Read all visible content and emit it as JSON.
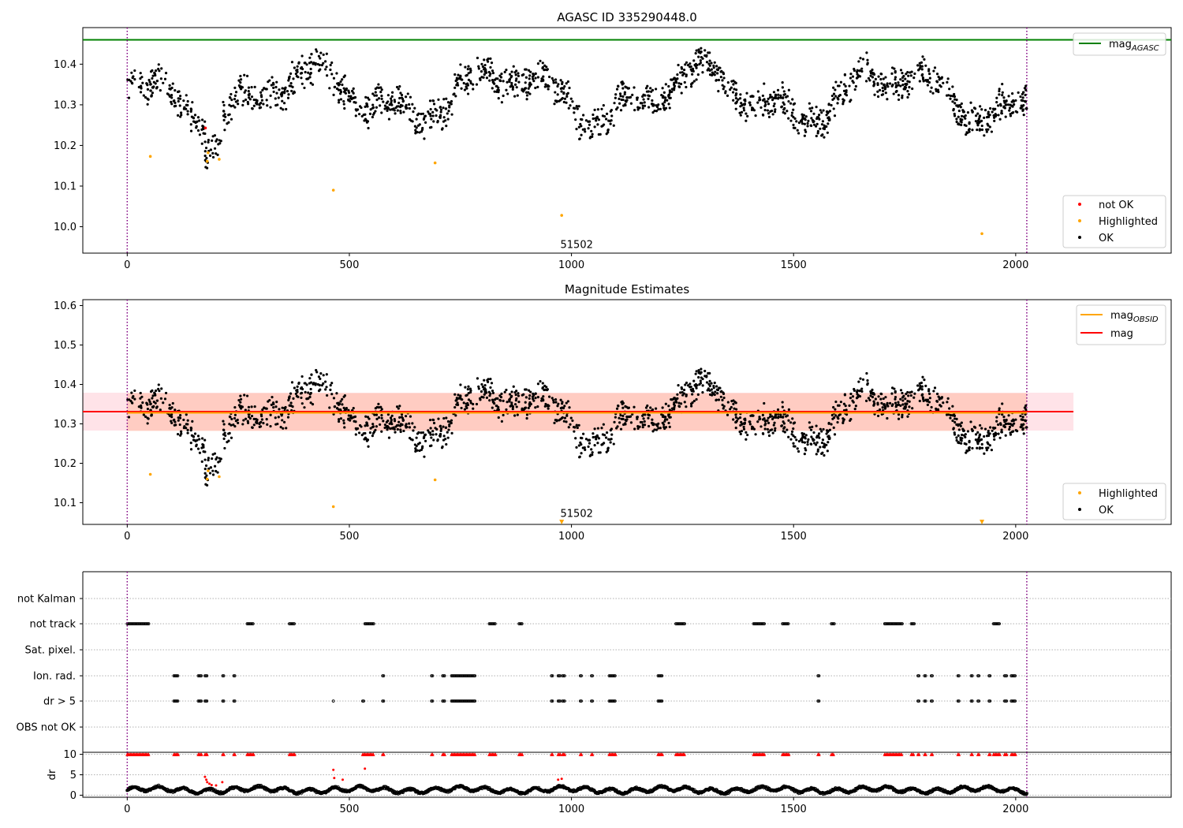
{
  "chart_data": [
    {
      "type": "scatter",
      "title": "AGASC ID 335290448.0",
      "xlabel": "",
      "ylabel": "",
      "xlim": [
        -100,
        2350
      ],
      "ylim": [
        9.935,
        10.49
      ],
      "xticks": [
        0,
        500,
        1000,
        1500,
        2000
      ],
      "yticks": [
        10.0,
        10.1,
        10.2,
        10.3,
        10.4
      ],
      "grid": false,
      "legend_upper": {
        "placement": "top-right",
        "entries": [
          {
            "label": "mag",
            "subscript": "AGASC",
            "color": "#008000"
          }
        ]
      },
      "legend_lower": {
        "placement": "bottom-right",
        "entries": [
          {
            "label": "not OK",
            "color": "#ff0000"
          },
          {
            "label": "Highlighted",
            "color": "#ffa500"
          },
          {
            "label": "OK",
            "color": "#000000"
          }
        ]
      },
      "hlines": [
        {
          "name": "mag_AGASC",
          "y": 10.46,
          "color": "#008000"
        }
      ],
      "vlines": [
        {
          "x": 0,
          "color": "#800080",
          "style": "dotted"
        },
        {
          "x": 2025,
          "color": "#800080",
          "style": "dotted"
        }
      ],
      "annotations": [
        {
          "text": "51502",
          "x": 975,
          "y": 9.955
        }
      ],
      "series": [
        {
          "name": "OK",
          "color": "#000000",
          "generated": "lightcurve",
          "x_range": [
            0,
            2025
          ],
          "count": 1750
        },
        {
          "name": "Highlighted",
          "color": "#ffa500",
          "points": [
            [
              52,
              10.173
            ],
            [
              180,
              10.161
            ],
            [
              182,
              10.182
            ],
            [
              207,
              10.166
            ],
            [
              464,
              10.09
            ],
            [
              693,
              10.157
            ],
            [
              978,
              10.028
            ],
            [
              1924,
              9.983
            ]
          ]
        },
        {
          "name": "not OK",
          "color": "#ff0000",
          "points": [
            [
              176,
              10.243
            ]
          ]
        }
      ]
    },
    {
      "type": "scatter",
      "title": "Magnitude Estimates",
      "xlabel": "",
      "ylabel": "",
      "xlim": [
        -100,
        2350
      ],
      "ylim": [
        10.045,
        10.615
      ],
      "xticks": [
        0,
        500,
        1000,
        1500,
        2000
      ],
      "yticks": [
        10.1,
        10.2,
        10.3,
        10.4,
        10.5,
        10.6
      ],
      "grid": false,
      "legend_upper": {
        "placement": "top-right",
        "entries": [
          {
            "label": "mag",
            "subscript": "OBSID",
            "color": "#ffa500"
          },
          {
            "label": "mag",
            "subscript": "",
            "color": "#ff0000"
          }
        ]
      },
      "legend_lower": {
        "placement": "bottom-right",
        "entries": [
          {
            "label": "Highlighted",
            "color": "#ffa500"
          },
          {
            "label": "OK",
            "color": "#000000"
          }
        ]
      },
      "hlines": [
        {
          "name": "mag",
          "y": 10.331,
          "x_range": [
            -100,
            2130
          ],
          "color": "#ff0000"
        },
        {
          "name": "mag_OBSID",
          "y": 10.328,
          "x_range": [
            0,
            2025
          ],
          "color": "#ffa500"
        }
      ],
      "bands": [
        {
          "y_range": [
            10.283,
            10.379
          ],
          "x_range": [
            -100,
            2130
          ],
          "color": "#ffc0cb"
        },
        {
          "y_range": [
            10.282,
            10.378
          ],
          "x_range": [
            0,
            2025
          ],
          "color": "#ffa07a"
        }
      ],
      "vlines": [
        {
          "x": 0,
          "color": "#800080",
          "style": "dotted"
        },
        {
          "x": 2025,
          "color": "#800080",
          "style": "dotted"
        }
      ],
      "annotations": [
        {
          "text": "51502",
          "x": 975,
          "y": 10.068
        }
      ],
      "series": [
        {
          "name": "OK",
          "color": "#000000",
          "generated": "lightcurve",
          "x_range": [
            0,
            2025
          ],
          "count": 1750
        },
        {
          "name": "Highlighted",
          "color": "#ffa500",
          "points": [
            [
              52,
              10.172
            ],
            [
              180,
              10.16
            ],
            [
              182,
              10.181
            ],
            [
              207,
              10.166
            ],
            [
              464,
              10.09
            ],
            [
              693,
              10.158
            ]
          ]
        },
        {
          "name": "Highlighted (below axis)",
          "color": "#ffa500",
          "marker": "triangle-down",
          "points": [
            [
              978,
              10.05
            ],
            [
              1924,
              10.05
            ]
          ]
        }
      ]
    },
    {
      "type": "scatter",
      "title": "",
      "xlim": [
        -100,
        2350
      ],
      "flag_rows": [
        "not Kalman",
        "not track",
        "Sat. pixel.",
        "Ion. rad.",
        "dr > 5",
        "OBS not OK"
      ],
      "xticks": [
        0,
        500,
        1000,
        1500,
        2000
      ],
      "grid": true,
      "vlines": [
        {
          "x": 0,
          "color": "#800080",
          "style": "dotted"
        },
        {
          "x": 2025,
          "color": "#800080",
          "style": "dotted"
        }
      ],
      "flags": {
        "not Kalman": [],
        "not track": [
          [
            0,
            50
          ],
          [
            270,
            285
          ],
          [
            365,
            378
          ],
          [
            535,
            555
          ],
          [
            815,
            830
          ],
          [
            882,
            890
          ],
          [
            1235,
            1255
          ],
          [
            1410,
            1435
          ],
          [
            1475,
            1490
          ],
          [
            1585,
            1592
          ],
          [
            1705,
            1745
          ],
          [
            1765,
            1772
          ],
          [
            1950,
            1965
          ]
        ],
        "Sat. pixel.": [],
        "Ion. rad.": [
          [
            105,
            115
          ],
          [
            160,
            168
          ],
          [
            175,
            180
          ],
          [
            215,
            218
          ],
          [
            240,
            243
          ],
          [
            575,
            578
          ],
          [
            685,
            688
          ],
          [
            710,
            715
          ],
          [
            730,
            785
          ],
          [
            955,
            958
          ],
          [
            970,
            975
          ],
          [
            980,
            985
          ],
          [
            1020,
            1023
          ],
          [
            1045,
            1048
          ],
          [
            1085,
            1100
          ],
          [
            1195,
            1205
          ],
          [
            1555,
            1558
          ],
          [
            1780,
            1783
          ],
          [
            1795,
            1798
          ],
          [
            1810,
            1813
          ],
          [
            1870,
            1873
          ],
          [
            1900,
            1903
          ],
          [
            1915,
            1918
          ],
          [
            1940,
            1943
          ],
          [
            1975,
            1980
          ],
          [
            1990,
            2000
          ]
        ],
        "dr > 5": [
          [
            105,
            115
          ],
          [
            160,
            168
          ],
          [
            175,
            180
          ],
          [
            215,
            218
          ],
          [
            240,
            243
          ],
          [
            464,
            466
          ],
          [
            530,
            533
          ],
          [
            575,
            578
          ],
          [
            685,
            688
          ],
          [
            710,
            715
          ],
          [
            730,
            785
          ],
          [
            955,
            958
          ],
          [
            970,
            975
          ],
          [
            980,
            985
          ],
          [
            1020,
            1023
          ],
          [
            1045,
            1048
          ],
          [
            1085,
            1100
          ],
          [
            1195,
            1205
          ],
          [
            1555,
            1558
          ],
          [
            1780,
            1783
          ],
          [
            1795,
            1798
          ],
          [
            1810,
            1813
          ],
          [
            1870,
            1873
          ],
          [
            1900,
            1903
          ],
          [
            1915,
            1918
          ],
          [
            1940,
            1943
          ],
          [
            1975,
            1980
          ],
          [
            1990,
            2000
          ]
        ],
        "OBS not OK": []
      }
    },
    {
      "type": "scatter",
      "title": "",
      "ylabel": "dr",
      "xlim": [
        -100,
        2350
      ],
      "ylim": [
        -0.5,
        10.5
      ],
      "xticks": [
        0,
        500,
        1000,
        1500,
        2000
      ],
      "yticks": [
        0,
        5,
        10
      ],
      "grid": true,
      "clip_value": 10,
      "vlines": [
        {
          "x": 0,
          "color": "#800080",
          "style": "dotted"
        },
        {
          "x": 2025,
          "color": "#800080",
          "style": "dotted"
        }
      ],
      "series": [
        {
          "name": "dr OK",
          "color": "#000000",
          "generated": "dr",
          "x_range": [
            0,
            2025
          ],
          "count": 1750
        },
        {
          "name": "dr > 5 (clipped)",
          "color": "#ff0000",
          "marker": "triangle-up",
          "y": 10,
          "x_ranges": [
            [
              0,
              50
            ],
            [
              105,
              115
            ],
            [
              160,
              168
            ],
            [
              175,
              180
            ],
            [
              215,
              218
            ],
            [
              240,
              243
            ],
            [
              270,
              285
            ],
            [
              365,
              378
            ],
            [
              530,
              555
            ],
            [
              575,
              578
            ],
            [
              685,
              688
            ],
            [
              710,
              715
            ],
            [
              730,
              785
            ],
            [
              815,
              830
            ],
            [
              882,
              890
            ],
            [
              955,
              958
            ],
            [
              970,
              975
            ],
            [
              980,
              985
            ],
            [
              1020,
              1023
            ],
            [
              1045,
              1048
            ],
            [
              1085,
              1100
            ],
            [
              1195,
              1205
            ],
            [
              1235,
              1255
            ],
            [
              1410,
              1435
            ],
            [
              1475,
              1490
            ],
            [
              1555,
              1558
            ],
            [
              1585,
              1592
            ],
            [
              1705,
              1745
            ],
            [
              1765,
              1772
            ],
            [
              1780,
              1783
            ],
            [
              1795,
              1798
            ],
            [
              1810,
              1813
            ],
            [
              1870,
              1873
            ],
            [
              1900,
              1903
            ],
            [
              1915,
              1918
            ],
            [
              1940,
              1943
            ],
            [
              1950,
              1965
            ],
            [
              1975,
              1980
            ],
            [
              1990,
              2000
            ]
          ]
        },
        {
          "name": "dr elevated",
          "color": "#ff0000",
          "points": [
            [
              175,
              4.5
            ],
            [
              178,
              3.8
            ],
            [
              180,
              3.2
            ],
            [
              185,
              2.8
            ],
            [
              190,
              2.5
            ],
            [
              200,
              2.4
            ],
            [
              214,
              3.2
            ],
            [
              464,
              6.2
            ],
            [
              466,
              4.2
            ],
            [
              485,
              3.8
            ],
            [
              535,
              6.5
            ],
            [
              970,
              3.8
            ],
            [
              978,
              4.0
            ]
          ]
        }
      ]
    }
  ]
}
